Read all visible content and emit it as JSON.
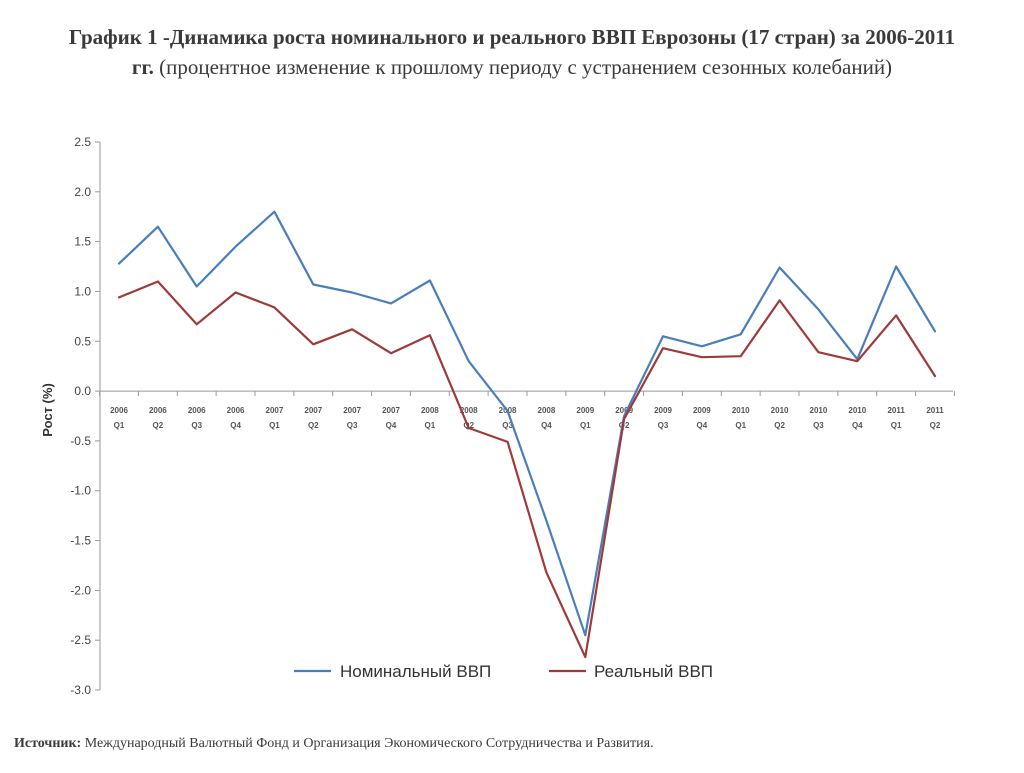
{
  "header": {
    "title_line1": "График 1 -Динамика роста номинального  и реального ВВП Еврозоны (17 стран) за 2006-2011",
    "title_line2_bold": "гг.",
    "title_line2_rest": " (процентное изменение к прошлому периоду с устранением сезонных колебаний)"
  },
  "source": {
    "label": "Источник:",
    "text": " Международный Валютный Фонд и Организация Экономического Сотрудничества и Развития."
  },
  "chart_data": {
    "type": "line",
    "title": "График 1 -Динамика роста номинального  и реального ВВП Еврозоны (17 стран) за 2006-2011 гг. (процентное изменение к прошлому периоду с устранением сезонных колебаний)",
    "xlabel": "",
    "ylabel": "Рост (%)",
    "ylim": [
      -3.0,
      2.5
    ],
    "yticks": [
      "2.5",
      "2.0",
      "1.5",
      "1.0",
      "0.5",
      "0.0",
      "-0.5",
      "-1.0",
      "-1.5",
      "-2.0",
      "-2.5",
      "-3.0"
    ],
    "ytick_values": [
      2.5,
      2.0,
      1.5,
      1.0,
      0.5,
      0.0,
      -0.5,
      -1.0,
      -1.5,
      -2.0,
      -2.5,
      -3.0
    ],
    "categories": [
      {
        "year": "2006",
        "q": "Q1"
      },
      {
        "year": "2006",
        "q": "Q2"
      },
      {
        "year": "2006",
        "q": "Q3"
      },
      {
        "year": "2006",
        "q": "Q4"
      },
      {
        "year": "2007",
        "q": "Q1"
      },
      {
        "year": "2007",
        "q": "Q2"
      },
      {
        "year": "2007",
        "q": "Q3"
      },
      {
        "year": "2007",
        "q": "Q4"
      },
      {
        "year": "2008",
        "q": "Q1"
      },
      {
        "year": "2008",
        "q": "Q2"
      },
      {
        "year": "2008",
        "q": "Q3"
      },
      {
        "year": "2008",
        "q": "Q4"
      },
      {
        "year": "2009",
        "q": "Q1"
      },
      {
        "year": "2009",
        "q": "Q2"
      },
      {
        "year": "2009",
        "q": "Q3"
      },
      {
        "year": "2009",
        "q": "Q4"
      },
      {
        "year": "2010",
        "q": "Q1"
      },
      {
        "year": "2010",
        "q": "Q2"
      },
      {
        "year": "2010",
        "q": "Q3"
      },
      {
        "year": "2010",
        "q": "Q4"
      },
      {
        "year": "2011",
        "q": "Q1"
      },
      {
        "year": "2011",
        "q": "Q2"
      }
    ],
    "series": [
      {
        "name": "Номинальный ВВП",
        "color": "#4a7ebb",
        "values": [
          1.28,
          1.65,
          1.05,
          1.45,
          1.8,
          1.07,
          0.99,
          0.88,
          1.11,
          0.3,
          -0.2,
          -1.3,
          -2.45,
          -0.25,
          0.55,
          0.45,
          0.57,
          1.24,
          0.82,
          0.32,
          1.25,
          0.6
        ]
      },
      {
        "name": "Реальный ВВП",
        "color": "#9c3b3a",
        "values": [
          0.94,
          1.1,
          0.67,
          0.99,
          0.84,
          0.47,
          0.62,
          0.38,
          0.56,
          -0.37,
          -0.51,
          -1.82,
          -2.67,
          -0.28,
          0.43,
          0.34,
          0.35,
          0.91,
          0.39,
          0.3,
          0.76,
          0.15
        ]
      }
    ],
    "legend_position": "bottom",
    "grid": false
  }
}
